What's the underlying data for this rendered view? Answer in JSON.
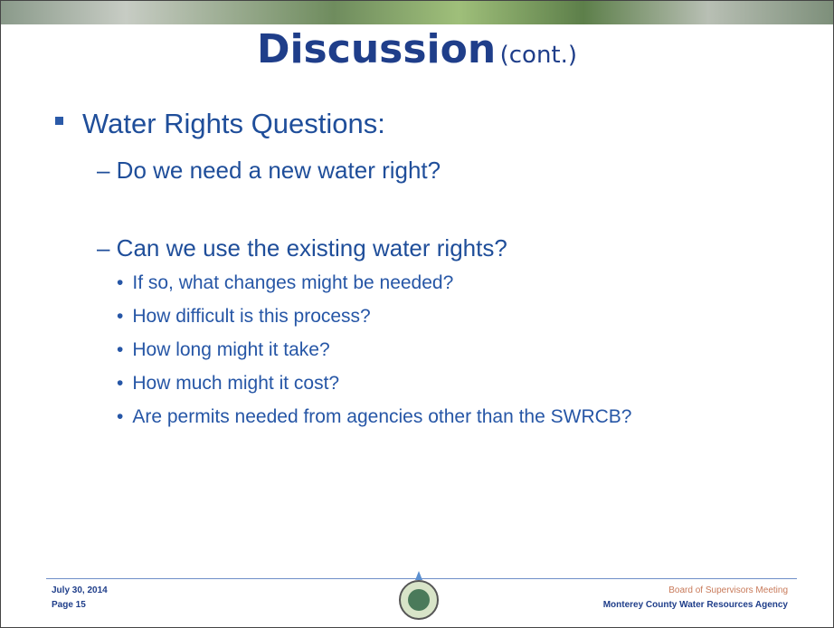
{
  "title": {
    "main": "Discussion",
    "sub": "(cont.)"
  },
  "body": {
    "heading": "Water Rights Questions:",
    "questions": [
      "– Do we need a new water right?",
      "– Can we use the existing water rights?"
    ],
    "sub_questions": [
      "If so, what changes might be needed?",
      "How difficult is this process?",
      "How long might it take?",
      "How much might it cost?",
      "Are permits needed from agencies other than the SWRCB?"
    ]
  },
  "footer": {
    "date": "July 30, 2014",
    "page": "Page 15",
    "meeting": "Board of Supervisors Meeting",
    "agency": "Monterey County Water Resources Agency"
  }
}
